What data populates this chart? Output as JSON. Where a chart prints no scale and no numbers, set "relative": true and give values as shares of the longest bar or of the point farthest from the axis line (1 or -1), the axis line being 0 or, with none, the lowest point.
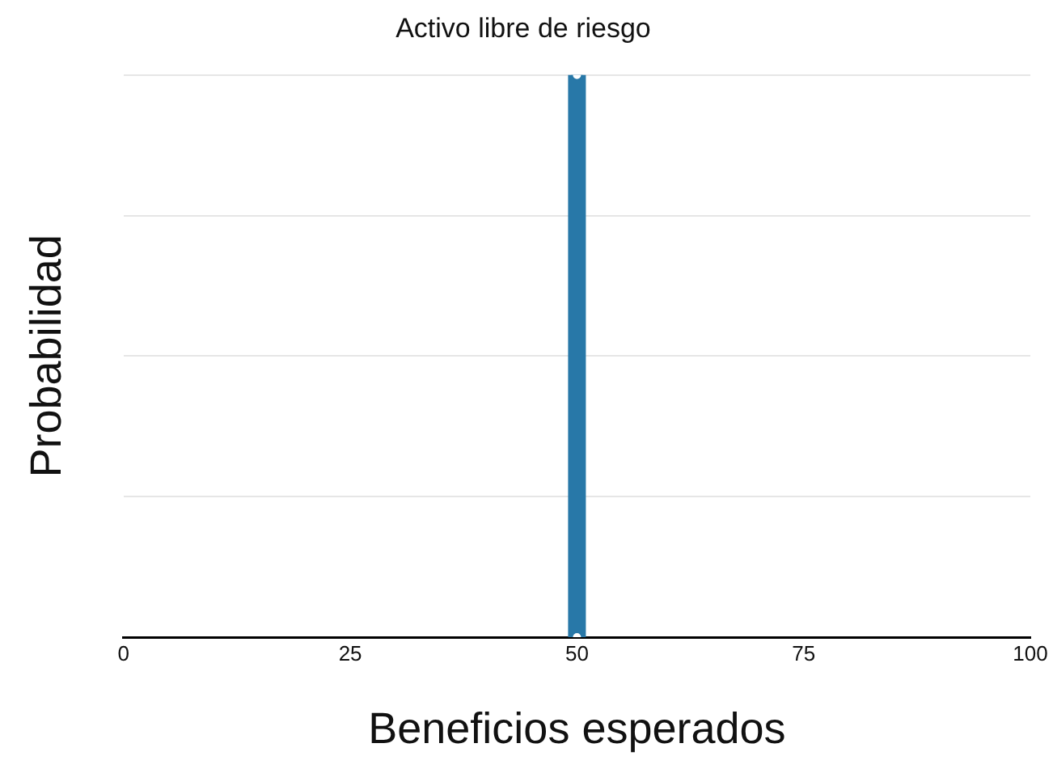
{
  "chart_data": {
    "type": "line",
    "title": "Activo libre de riesgo",
    "xlabel": "Beneficios esperados",
    "ylabel": "Probabilidad",
    "relative": true,
    "grid": "y",
    "marker": "circle",
    "line_style": "solid",
    "xlim": [
      0,
      100
    ],
    "xticks": [
      0,
      25,
      50,
      75,
      100
    ],
    "series": [
      {
        "color": "#2878a8",
        "x": [
          50,
          50
        ],
        "values": [
          0,
          1
        ]
      }
    ]
  }
}
